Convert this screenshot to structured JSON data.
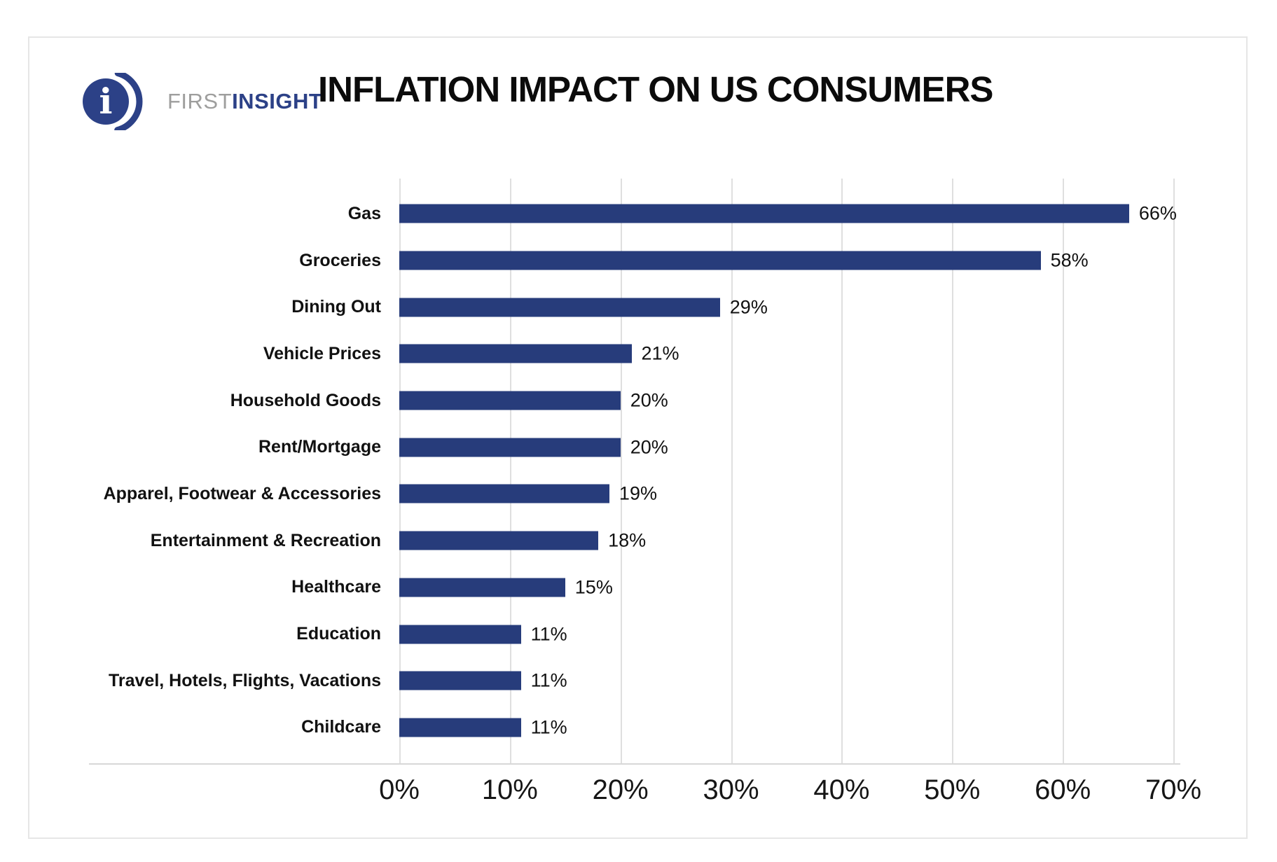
{
  "logo": {
    "first": "FIRST",
    "insight": "INSIGHT",
    "mark_letter": "i"
  },
  "chart_data": {
    "type": "bar",
    "orientation": "horizontal",
    "title": "INFLATION IMPACT ON US CONSUMERS",
    "categories": [
      "Gas",
      "Groceries",
      "Dining Out",
      "Vehicle Prices",
      "Household Goods",
      "Rent/Mortgage",
      "Apparel, Footwear & Accessories",
      "Entertainment & Recreation",
      "Healthcare",
      "Education",
      "Travel, Hotels, Flights, Vacations",
      "Childcare"
    ],
    "values": [
      66,
      58,
      29,
      21,
      20,
      20,
      19,
      18,
      15,
      11,
      11,
      11
    ],
    "value_labels": [
      "66%",
      "58%",
      "29%",
      "21%",
      "20%",
      "20%",
      "19%",
      "18%",
      "15%",
      "11%",
      "11%",
      "11%"
    ],
    "xlim": [
      0,
      70
    ],
    "x_tick_values": [
      0,
      10,
      20,
      30,
      40,
      50,
      60,
      70
    ],
    "x_tick_labels": [
      "0%",
      "10%",
      "20%",
      "30%",
      "40%",
      "50%",
      "60%",
      "70%"
    ],
    "xlabel": "",
    "ylabel": "",
    "grid": "vertical",
    "legend": "none",
    "bar_color": "#273c7b",
    "gridline_color": "#dfdfdf",
    "axis_line_color": "#d8d8d8",
    "logo_navy": "#2c4187",
    "logo_gray": "#9e9e9d"
  }
}
